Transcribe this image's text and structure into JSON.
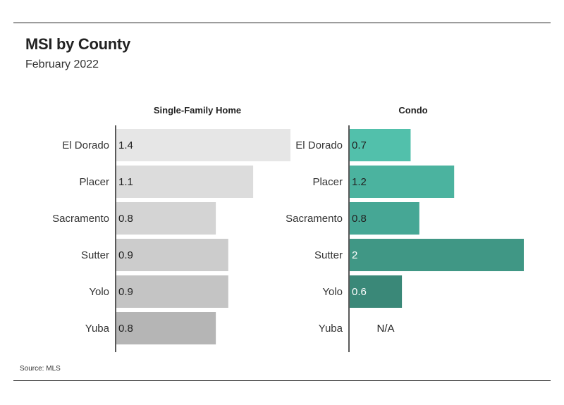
{
  "title": "MSI by County",
  "subtitle": "February 2022",
  "source": "Source: MLS",
  "chart_data": [
    {
      "type": "bar",
      "orientation": "horizontal",
      "title": "Single-Family Home",
      "categories": [
        "El Dorado",
        "Placer",
        "Sacramento",
        "Sutter",
        "Yolo",
        "Yuba"
      ],
      "values": [
        1.4,
        1.1,
        0.8,
        0.9,
        0.9,
        0.8
      ],
      "value_labels": [
        "1.4",
        "1.1",
        "0.8",
        "0.9",
        "0.9",
        "0.8"
      ],
      "colors": [
        "#e6e6e6",
        "#dcdcdc",
        "#d4d4d4",
        "#cccccc",
        "#c4c4c4",
        "#b5b5b5"
      ],
      "label_color": "#222222",
      "xlim": [
        0,
        1.4
      ]
    },
    {
      "type": "bar",
      "orientation": "horizontal",
      "title": "Condo",
      "categories": [
        "El Dorado",
        "Placer",
        "Sacramento",
        "Sutter",
        "Yolo",
        "Yuba"
      ],
      "values": [
        0.7,
        1.2,
        0.8,
        2,
        0.6,
        null
      ],
      "value_labels": [
        "0.7",
        "1.2",
        "0.8",
        "2",
        "0.6",
        "N/A"
      ],
      "colors": [
        "#52c0ab",
        "#4bb39f",
        "#46a795",
        "#409785",
        "#3a8878",
        "#3a8878"
      ],
      "label_colors": [
        "#222222",
        "#222222",
        "#222222",
        "#ffffff",
        "#ffffff",
        "#222222"
      ],
      "xlim": [
        0,
        2
      ]
    }
  ]
}
